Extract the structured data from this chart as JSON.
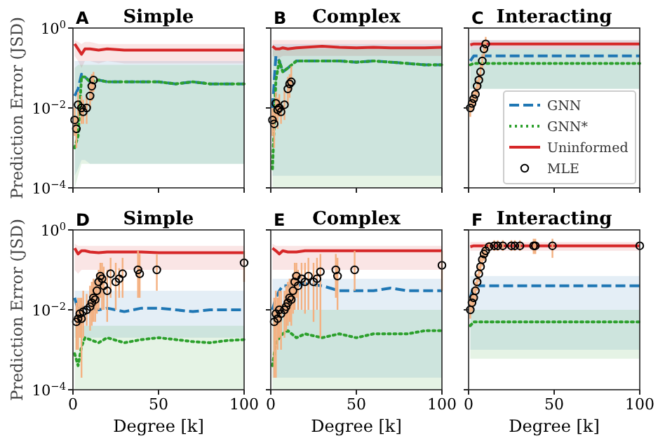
{
  "chart_data": [
    {
      "type": "line",
      "title": "Simple",
      "annotations": [
        "A"
      ],
      "ylabel": "Prediction Error (JSD)",
      "xlim": [
        0,
        100
      ],
      "ylim": [
        0.0001,
        1
      ],
      "xticks": [
        {
          "value": 0,
          "label": null
        },
        {
          "value": 50,
          "label": null
        },
        {
          "value": 100,
          "label": null
        }
      ],
      "yticks": [
        {
          "value": 0.0001,
          "label": "10$^{−4}$"
        },
        {
          "value": 0.01,
          "label": "10$^{−2}$"
        },
        {
          "value": 1,
          "label": "10$^{0}$"
        }
      ],
      "log": "y",
      "tick_labels": "y",
      "series": [
        {
          "type": "line",
          "color": "#d62728",
          "line_style": "solid",
          "x": [
            1,
            3,
            5,
            7,
            10,
            15,
            20,
            30,
            40,
            50,
            60,
            70,
            80,
            90,
            100
          ],
          "values": [
            0.4,
            0.3,
            0.22,
            0.3,
            0.3,
            0.28,
            0.3,
            0.28,
            0.28,
            0.28,
            0.28,
            0.28,
            0.28,
            0.28,
            0.28
          ],
          "lower": [
            0.2,
            0.15,
            0.1,
            0.15,
            0.15,
            0.13,
            0.15,
            0.13,
            0.13,
            0.13,
            0.13,
            0.13,
            0.13,
            0.13,
            0.13
          ],
          "upper": [
            0.5,
            0.45,
            0.4,
            0.45,
            0.45,
            0.4,
            0.4,
            0.4,
            0.4,
            0.4,
            0.4,
            0.4,
            0.4,
            0.4,
            0.4
          ]
        },
        {
          "type": "line",
          "color": "#1f77b4",
          "line_style": "dashed",
          "x": [
            1,
            3,
            5,
            7,
            10,
            15,
            20,
            30,
            40,
            50,
            60,
            70,
            80,
            90,
            100
          ],
          "values": [
            0.02,
            0.03,
            0.07,
            0.06,
            0.045,
            0.05,
            0.045,
            0.045,
            0.045,
            0.045,
            0.04,
            0.045,
            0.04,
            0.04,
            0.04
          ],
          "lower": [
            0.0002,
            0.0003,
            0.0005,
            0.0005,
            0.0004,
            0.0004,
            0.0004,
            0.0004,
            0.0004,
            0.0004,
            0.0004,
            0.0004,
            0.0004,
            0.0004,
            0.0004
          ],
          "upper": [
            0.15,
            0.15,
            0.15,
            0.15,
            0.15,
            0.15,
            0.15,
            0.15,
            0.15,
            0.15,
            0.15,
            0.15,
            0.15,
            0.15,
            0.15
          ]
        },
        {
          "type": "line",
          "color": "#2ca02c",
          "line_style": "dotted",
          "x": [
            1,
            3,
            5,
            7,
            10,
            15,
            20,
            30,
            40,
            50,
            60,
            70,
            80,
            90,
            100
          ],
          "values": [
            0.001,
            0.002,
            0.06,
            0.06,
            0.045,
            0.05,
            0.045,
            0.045,
            0.045,
            0.045,
            0.04,
            0.045,
            0.04,
            0.04,
            0.04
          ],
          "lower": [
            0.0001,
            0.0002,
            0.0004,
            0.0004,
            0.0004,
            0.0004,
            0.0004,
            0.0004,
            0.0004,
            0.0004,
            0.0004,
            0.0004,
            0.0004,
            0.0004,
            0.0004
          ],
          "upper": [
            0.1,
            0.12,
            0.12,
            0.12,
            0.12,
            0.12,
            0.12,
            0.12,
            0.12,
            0.12,
            0.12,
            0.12,
            0.12,
            0.12,
            0.12
          ]
        },
        {
          "type": "scatter",
          "color": "#000000",
          "marker": "circle",
          "x": [
            1,
            2,
            3,
            5,
            6,
            8,
            10,
            11,
            12
          ],
          "values": [
            0.005,
            0.003,
            0.012,
            0.01,
            0.008,
            0.01,
            0.02,
            0.035,
            0.05
          ],
          "errors": [
            [
              0.002,
              0.01
            ],
            [
              0.001,
              0.006
            ],
            [
              0.005,
              0.025
            ],
            [
              0.004,
              0.02
            ],
            [
              0.004,
              0.016
            ],
            [
              0.004,
              0.02
            ],
            [
              0.01,
              0.04
            ],
            [
              0.015,
              0.07
            ],
            [
              0.025,
              0.08
            ]
          ]
        }
      ]
    },
    {
      "type": "line",
      "title": "Complex",
      "annotations": [
        "B"
      ],
      "xlim": [
        0,
        100
      ],
      "ylim": [
        0.0001,
        1
      ],
      "xticks": [
        {
          "value": 0,
          "label": null
        },
        {
          "value": 50,
          "label": null
        },
        {
          "value": 100,
          "label": null
        }
      ],
      "yticks": [
        {
          "value": 0.0001,
          "label": null
        },
        {
          "value": 0.01,
          "label": null
        },
        {
          "value": 1,
          "label": null
        }
      ],
      "log": "y",
      "tick_labels": false,
      "series": [
        {
          "type": "line",
          "color": "#d62728",
          "line_style": "solid",
          "x": [
            1,
            3,
            5,
            7,
            10,
            15,
            20,
            30,
            40,
            50,
            60,
            70,
            80,
            90,
            100
          ],
          "values": [
            0.35,
            0.3,
            0.3,
            0.32,
            0.3,
            0.32,
            0.33,
            0.35,
            0.33,
            0.32,
            0.33,
            0.32,
            0.32,
            0.32,
            0.33
          ],
          "lower": [
            0.2,
            0.18,
            0.18,
            0.2,
            0.2,
            0.2,
            0.2,
            0.2,
            0.2,
            0.2,
            0.2,
            0.2,
            0.2,
            0.2,
            0.2
          ],
          "upper": [
            0.5,
            0.5,
            0.5,
            0.5,
            0.5,
            0.5,
            0.5,
            0.5,
            0.5,
            0.5,
            0.5,
            0.5,
            0.5,
            0.5,
            0.5
          ]
        },
        {
          "type": "line",
          "color": "#1f77b4",
          "line_style": "dashed",
          "x": [
            1,
            3,
            5,
            7,
            10,
            15,
            20,
            30,
            40,
            50,
            60,
            70,
            80,
            90,
            100
          ],
          "values": [
            0.01,
            0.2,
            0.15,
            0.08,
            0.1,
            0.15,
            0.15,
            0.15,
            0.15,
            0.14,
            0.15,
            0.14,
            0.13,
            0.12,
            0.12
          ],
          "lower": [
            0.0002,
            0.0002,
            0.0002,
            0.0002,
            0.0002,
            0.0002,
            0.0002,
            0.0002,
            0.0002,
            0.0002,
            0.0002,
            0.0002,
            0.0002,
            0.0002,
            0.0002
          ],
          "upper": [
            0.4,
            0.4,
            0.4,
            0.4,
            0.4,
            0.4,
            0.4,
            0.4,
            0.4,
            0.4,
            0.4,
            0.4,
            0.4,
            0.4,
            0.4
          ]
        },
        {
          "type": "line",
          "color": "#2ca02c",
          "line_style": "dotted",
          "x": [
            1,
            3,
            5,
            7,
            10,
            15,
            20,
            30,
            40,
            50,
            60,
            70,
            80,
            90,
            100
          ],
          "values": [
            0.0003,
            0.05,
            0.15,
            0.08,
            0.1,
            0.15,
            0.15,
            0.15,
            0.15,
            0.14,
            0.15,
            0.14,
            0.13,
            0.12,
            0.12
          ],
          "lower": [
            0.0001,
            0.0001,
            0.0001,
            0.0001,
            0.0001,
            0.0001,
            0.0001,
            0.0001,
            0.0001,
            0.0001,
            0.0001,
            0.0001,
            0.0001,
            0.0001,
            0.0001
          ],
          "upper": [
            0.3,
            0.3,
            0.3,
            0.3,
            0.3,
            0.3,
            0.3,
            0.3,
            0.3,
            0.3,
            0.3,
            0.3,
            0.3,
            0.3,
            0.3
          ]
        },
        {
          "type": "scatter",
          "color": "#000000",
          "marker": "circle",
          "x": [
            1,
            2,
            3,
            4,
            5,
            6,
            8,
            10,
            11,
            12
          ],
          "values": [
            0.005,
            0.004,
            0.013,
            0.009,
            0.01,
            0.008,
            0.012,
            0.03,
            0.04,
            0.045
          ],
          "errors": [
            [
              0.002,
              0.01
            ],
            [
              0.001,
              0.008
            ],
            [
              0.005,
              0.025
            ],
            [
              0.003,
              0.018
            ],
            [
              0.006,
              0.022
            ],
            [
              0.004,
              0.014
            ],
            [
              0.005,
              0.028
            ],
            [
              0.012,
              0.06
            ],
            [
              0.018,
              0.07
            ],
            [
              0.028,
              0.11
            ]
          ]
        }
      ]
    },
    {
      "type": "line",
      "title": "Interacting",
      "annotations": [
        "C"
      ],
      "legend": "bottom right",
      "xlim": [
        0,
        100
      ],
      "ylim": [
        0.0001,
        1
      ],
      "xticks": [
        {
          "value": 0,
          "label": null
        },
        {
          "value": 50,
          "label": null
        },
        {
          "value": 100,
          "label": null
        }
      ],
      "yticks": [
        {
          "value": 0.0001,
          "label": null
        },
        {
          "value": 0.01,
          "label": null
        },
        {
          "value": 1,
          "label": null
        }
      ],
      "log": "y",
      "tick_labels": false,
      "series": [
        {
          "type": "line",
          "name": "GNN",
          "color": "#1f77b4",
          "line_style": "dashed",
          "x": [
            1,
            3,
            5,
            7,
            10,
            15,
            20,
            30,
            40,
            50,
            60,
            70,
            80,
            90,
            100
          ],
          "values": [
            0.15,
            0.2,
            0.2,
            0.2,
            0.2,
            0.2,
            0.2,
            0.2,
            0.2,
            0.2,
            0.2,
            0.2,
            0.2,
            0.2,
            0.2
          ],
          "lower": [
            0.03,
            0.03,
            0.03,
            0.03,
            0.03,
            0.03,
            0.03,
            0.03,
            0.03,
            0.03,
            0.03,
            0.03,
            0.03,
            0.03,
            0.03
          ],
          "upper": [
            0.5,
            0.5,
            0.5,
            0.5,
            0.5,
            0.5,
            0.5,
            0.5,
            0.5,
            0.5,
            0.5,
            0.5,
            0.5,
            0.5,
            0.5
          ]
        },
        {
          "type": "line",
          "name": "GNN*",
          "color": "#2ca02c",
          "line_style": "dotted",
          "x": [
            1,
            3,
            5,
            7,
            10,
            15,
            20,
            30,
            40,
            50,
            60,
            70,
            80,
            90,
            100
          ],
          "values": [
            0.12,
            0.13,
            0.13,
            0.13,
            0.13,
            0.13,
            0.13,
            0.13,
            0.13,
            0.13,
            0.13,
            0.13,
            0.13,
            0.13,
            0.13
          ],
          "lower": [
            0.03,
            0.03,
            0.03,
            0.03,
            0.03,
            0.03,
            0.03,
            0.03,
            0.03,
            0.03,
            0.03,
            0.03,
            0.03,
            0.03,
            0.03
          ],
          "upper": [
            0.3,
            0.3,
            0.3,
            0.3,
            0.3,
            0.3,
            0.3,
            0.3,
            0.3,
            0.3,
            0.3,
            0.3,
            0.3,
            0.3,
            0.3
          ]
        },
        {
          "type": "line",
          "name": "Uninformed",
          "color": "#d62728",
          "line_style": "solid",
          "x": [
            1,
            3,
            5,
            7,
            10,
            15,
            20,
            30,
            40,
            50,
            60,
            70,
            80,
            90,
            100
          ],
          "values": [
            0.38,
            0.4,
            0.4,
            0.4,
            0.4,
            0.4,
            0.4,
            0.4,
            0.4,
            0.4,
            0.4,
            0.4,
            0.4,
            0.4,
            0.4
          ],
          "lower": [
            0.3,
            0.3,
            0.3,
            0.3,
            0.3,
            0.3,
            0.3,
            0.3,
            0.3,
            0.3,
            0.3,
            0.3,
            0.3,
            0.3,
            0.3
          ],
          "upper": [
            0.5,
            0.5,
            0.5,
            0.5,
            0.5,
            0.5,
            0.5,
            0.5,
            0.5,
            0.5,
            0.5,
            0.5,
            0.5,
            0.5,
            0.5
          ]
        },
        {
          "type": "scatter",
          "name": "MLE",
          "color": "#000000",
          "marker": "circle",
          "x": [
            1,
            2,
            3,
            4,
            5,
            6,
            7,
            8,
            9,
            10
          ],
          "values": [
            0.01,
            0.013,
            0.017,
            0.022,
            0.035,
            0.05,
            0.08,
            0.15,
            0.3,
            0.4
          ],
          "errors": [
            [
              0.006,
              0.015
            ],
            [
              0.008,
              0.02
            ],
            [
              0.01,
              0.026
            ],
            [
              0.013,
              0.033
            ],
            [
              0.021,
              0.05
            ],
            [
              0.03,
              0.075
            ],
            [
              0.05,
              0.12
            ],
            [
              0.09,
              0.22
            ],
            [
              0.18,
              0.45
            ],
            [
              0.24,
              0.6
            ]
          ]
        }
      ]
    },
    {
      "type": "line",
      "title": "Simple",
      "annotations": [
        "D"
      ],
      "ylabel": "Prediction Error (JSD)",
      "xlabel": "Degree [k]",
      "xlim": [
        0,
        100
      ],
      "ylim": [
        0.0001,
        1
      ],
      "xticks": [
        0,
        50,
        100
      ],
      "yticks": [
        {
          "value": 0.0001,
          "label": "10$^{−4}$"
        },
        {
          "value": 0.01,
          "label": "10$^{−2}$"
        },
        {
          "value": 1,
          "label": "10$^{0}$"
        }
      ],
      "log": "y",
      "series": [
        {
          "type": "line",
          "color": "#d62728",
          "line_style": "solid",
          "x": [
            1,
            3,
            5,
            7,
            10,
            15,
            20,
            30,
            40,
            50,
            60,
            70,
            80,
            90,
            100
          ],
          "values": [
            0.35,
            0.25,
            0.3,
            0.3,
            0.28,
            0.27,
            0.28,
            0.28,
            0.28,
            0.27,
            0.27,
            0.27,
            0.27,
            0.27,
            0.27
          ],
          "lower": [
            0.1,
            0.08,
            0.1,
            0.1,
            0.1,
            0.1,
            0.1,
            0.1,
            0.1,
            0.1,
            0.1,
            0.1,
            0.1,
            0.1,
            0.1
          ],
          "upper": [
            0.45,
            0.4,
            0.4,
            0.4,
            0.4,
            0.4,
            0.4,
            0.4,
            0.4,
            0.4,
            0.4,
            0.4,
            0.4,
            0.4,
            0.4
          ]
        },
        {
          "type": "line",
          "color": "#1f77b4",
          "line_style": "dashed",
          "x": [
            1,
            3,
            5,
            7,
            10,
            15,
            20,
            30,
            40,
            50,
            60,
            70,
            80,
            90,
            100
          ],
          "values": [
            0.02,
            0.01,
            0.012,
            0.011,
            0.011,
            0.01,
            0.011,
            0.009,
            0.011,
            0.011,
            0.01,
            0.009,
            0.01,
            0.01,
            0.01
          ],
          "lower": [
            0.002,
            0.002,
            0.002,
            0.002,
            0.002,
            0.002,
            0.002,
            0.002,
            0.002,
            0.002,
            0.002,
            0.002,
            0.002,
            0.002,
            0.002
          ],
          "upper": [
            0.03,
            0.03,
            0.03,
            0.03,
            0.03,
            0.03,
            0.03,
            0.03,
            0.03,
            0.03,
            0.03,
            0.03,
            0.03,
            0.03,
            0.03
          ]
        },
        {
          "type": "line",
          "color": "#2ca02c",
          "line_style": "dotted",
          "x": [
            1,
            3,
            5,
            7,
            10,
            15,
            20,
            30,
            40,
            50,
            60,
            70,
            80,
            90,
            100
          ],
          "values": [
            0.0008,
            0.0004,
            0.0012,
            0.002,
            0.0018,
            0.0015,
            0.002,
            0.0015,
            0.0018,
            0.002,
            0.0018,
            0.0016,
            0.0015,
            0.0017,
            0.0018
          ],
          "lower": [
            0.0001,
            0.0001,
            0.0001,
            0.0001,
            0.0001,
            0.0001,
            0.0001,
            0.0001,
            0.0001,
            0.0001,
            0.0001,
            0.0001,
            0.0001,
            0.0001,
            0.0001
          ],
          "upper": [
            0.004,
            0.004,
            0.004,
            0.004,
            0.004,
            0.004,
            0.004,
            0.004,
            0.004,
            0.004,
            0.004,
            0.004,
            0.004,
            0.004,
            0.004
          ]
        },
        {
          "type": "scatter",
          "color": "#000000",
          "marker": "circle",
          "x": [
            2,
            3,
            4,
            5,
            6,
            8,
            10,
            11,
            12,
            13,
            14,
            15,
            16,
            17,
            18,
            20,
            22,
            25,
            27,
            29,
            38,
            39,
            49,
            100
          ],
          "values": [
            0.005,
            0.006,
            0.008,
            0.006,
            0.009,
            0.01,
            0.012,
            0.015,
            0.02,
            0.018,
            0.03,
            0.05,
            0.07,
            0.06,
            0.04,
            0.03,
            0.08,
            0.05,
            0.06,
            0.08,
            0.1,
            0.08,
            0.1,
            0.15
          ],
          "errors": [
            [
              0.001,
              0.015
            ],
            [
              0.001,
              0.02
            ],
            [
              0.002,
              0.02
            ],
            [
              0.0002,
              0.02
            ],
            [
              0.002,
              0.03
            ],
            [
              0.004,
              0.025
            ],
            [
              0.003,
              0.04
            ],
            [
              0.004,
              0.05
            ],
            [
              0.005,
              0.06
            ],
            [
              0.005,
              0.05
            ],
            [
              0.008,
              0.08
            ],
            [
              0.01,
              0.1
            ],
            [
              0.02,
              0.15
            ],
            [
              0.01,
              0.15
            ],
            [
              0.01,
              0.12
            ],
            [
              0.005,
              0.1
            ],
            [
              0.02,
              0.2
            ],
            [
              0.01,
              0.15
            ],
            [
              0.02,
              0.11
            ],
            [
              0.02,
              0.2
            ],
            [
              0.02,
              0.3
            ],
            [
              0.02,
              0.25
            ],
            [
              0.03,
              0.25
            ],
            [
              0.05,
              0.3
            ]
          ]
        }
      ]
    },
    {
      "type": "line",
      "title": "Complex",
      "annotations": [
        "E"
      ],
      "xlabel": "Degree [k]",
      "xlim": [
        0,
        100
      ],
      "ylim": [
        0.0001,
        1
      ],
      "xticks": [
        0,
        50,
        100
      ],
      "yticks": [
        {
          "value": 0.0001,
          "label": null
        },
        {
          "value": 0.01,
          "label": null
        },
        {
          "value": 1,
          "label": null
        }
      ],
      "log": "y",
      "tick_labels": "x",
      "series": [
        {
          "type": "line",
          "color": "#d62728",
          "line_style": "solid",
          "x": [
            1,
            3,
            5,
            7,
            10,
            15,
            20,
            30,
            40,
            50,
            60,
            70,
            80,
            90,
            100
          ],
          "values": [
            0.35,
            0.3,
            0.25,
            0.3,
            0.28,
            0.28,
            0.3,
            0.3,
            0.3,
            0.3,
            0.3,
            0.3,
            0.3,
            0.3,
            0.3
          ],
          "lower": [
            0.1,
            0.1,
            0.1,
            0.1,
            0.1,
            0.1,
            0.1,
            0.1,
            0.1,
            0.1,
            0.1,
            0.1,
            0.1,
            0.1,
            0.1
          ],
          "upper": [
            0.45,
            0.4,
            0.4,
            0.4,
            0.4,
            0.4,
            0.4,
            0.4,
            0.4,
            0.4,
            0.4,
            0.4,
            0.4,
            0.4,
            0.4
          ]
        },
        {
          "type": "line",
          "color": "#1f77b4",
          "line_style": "dashed",
          "x": [
            1,
            3,
            5,
            7,
            10,
            15,
            20,
            30,
            40,
            50,
            60,
            70,
            80,
            90,
            100
          ],
          "values": [
            0.01,
            0.02,
            0.03,
            0.04,
            0.04,
            0.04,
            0.045,
            0.04,
            0.03,
            0.03,
            0.03,
            0.035,
            0.03,
            0.03,
            0.03
          ],
          "lower": [
            0.0002,
            0.0002,
            0.0002,
            0.0002,
            0.0002,
            0.0002,
            0.0002,
            0.0002,
            0.0002,
            0.0002,
            0.0002,
            0.0002,
            0.0002,
            0.0002,
            0.0002
          ],
          "upper": [
            0.06,
            0.06,
            0.06,
            0.06,
            0.06,
            0.06,
            0.06,
            0.06,
            0.06,
            0.06,
            0.06,
            0.06,
            0.06,
            0.06,
            0.06
          ]
        },
        {
          "type": "line",
          "color": "#2ca02c",
          "line_style": "dotted",
          "x": [
            1,
            3,
            5,
            7,
            10,
            15,
            20,
            30,
            40,
            50,
            60,
            70,
            80,
            90,
            100
          ],
          "values": [
            0.0004,
            0.0015,
            0.002,
            0.0025,
            0.003,
            0.002,
            0.0025,
            0.002,
            0.0025,
            0.002,
            0.0025,
            0.0025,
            0.0025,
            0.003,
            0.003
          ],
          "lower": [
            0.0001,
            0.0001,
            0.0001,
            0.0001,
            0.0001,
            0.0001,
            0.0001,
            0.0001,
            0.0001,
            0.0001,
            0.0001,
            0.0001,
            0.0001,
            0.0001,
            0.0001
          ],
          "upper": [
            0.01,
            0.01,
            0.01,
            0.01,
            0.01,
            0.01,
            0.01,
            0.01,
            0.01,
            0.01,
            0.01,
            0.01,
            0.01,
            0.01,
            0.01
          ]
        },
        {
          "type": "scatter",
          "color": "#000000",
          "marker": "circle",
          "x": [
            2,
            3,
            4,
            5,
            6,
            8,
            9,
            10,
            11,
            12,
            13,
            14,
            15,
            16,
            18,
            20,
            22,
            25,
            27,
            29,
            38,
            39,
            49,
            100
          ],
          "values": [
            0.005,
            0.008,
            0.006,
            0.01,
            0.008,
            0.01,
            0.012,
            0.015,
            0.02,
            0.018,
            0.03,
            0.05,
            0.07,
            0.04,
            0.06,
            0.05,
            0.07,
            0.05,
            0.06,
            0.09,
            0.1,
            0.07,
            0.1,
            0.13
          ],
          "errors": [
            [
              0.0002,
              0.02
            ],
            [
              0.0002,
              0.03
            ],
            [
              0.001,
              0.02
            ],
            [
              0.002,
              0.03
            ],
            [
              0.001,
              0.03
            ],
            [
              0.002,
              0.03
            ],
            [
              0.003,
              0.04
            ],
            [
              0.004,
              0.05
            ],
            [
              0.005,
              0.06
            ],
            [
              0.004,
              0.06
            ],
            [
              0.008,
              0.08
            ],
            [
              0.01,
              0.15
            ],
            [
              0.02,
              0.15
            ],
            [
              0.01,
              0.1
            ],
            [
              0.01,
              0.15
            ],
            [
              0.008,
              0.15
            ],
            [
              0.01,
              0.2
            ],
            [
              0.005,
              0.15
            ],
            [
              0.01,
              0.2
            ],
            [
              0.002,
              0.25
            ],
            [
              0.02,
              0.25
            ],
            [
              0.01,
              0.2
            ],
            [
              0.03,
              0.3
            ],
            [
              0.03,
              0.3
            ]
          ]
        }
      ]
    },
    {
      "type": "line",
      "title": "Interacting",
      "annotations": [
        "F"
      ],
      "xlabel": "Degree [k]",
      "xlim": [
        0,
        100
      ],
      "ylim": [
        0.0001,
        1
      ],
      "xticks": [
        0,
        50,
        100
      ],
      "yticks": [
        {
          "value": 0.0001,
          "label": null
        },
        {
          "value": 0.01,
          "label": null
        },
        {
          "value": 1,
          "label": null
        }
      ],
      "log": "y",
      "tick_labels": "x",
      "series": [
        {
          "type": "line",
          "color": "#d62728",
          "line_style": "solid",
          "x": [
            1,
            3,
            5,
            7,
            10,
            15,
            20,
            30,
            40,
            50,
            60,
            70,
            80,
            90,
            100
          ],
          "values": [
            0.38,
            0.4,
            0.4,
            0.4,
            0.4,
            0.4,
            0.4,
            0.4,
            0.4,
            0.4,
            0.4,
            0.4,
            0.4,
            0.4,
            0.4
          ],
          "lower": [
            0.3,
            0.3,
            0.3,
            0.3,
            0.3,
            0.3,
            0.3,
            0.3,
            0.3,
            0.3,
            0.3,
            0.3,
            0.3,
            0.3,
            0.3
          ],
          "upper": [
            0.5,
            0.5,
            0.5,
            0.5,
            0.5,
            0.5,
            0.5,
            0.5,
            0.5,
            0.5,
            0.5,
            0.5,
            0.5,
            0.5,
            0.5
          ]
        },
        {
          "type": "line",
          "color": "#1f77b4",
          "line_style": "dashed",
          "x": [
            1,
            3,
            5,
            7,
            10,
            15,
            20,
            30,
            40,
            50,
            60,
            70,
            80,
            90,
            100
          ],
          "values": [
            0.02,
            0.04,
            0.04,
            0.04,
            0.04,
            0.04,
            0.04,
            0.04,
            0.04,
            0.04,
            0.04,
            0.04,
            0.04,
            0.04,
            0.04
          ],
          "lower": [
            0.001,
            0.001,
            0.001,
            0.001,
            0.001,
            0.001,
            0.001,
            0.001,
            0.001,
            0.001,
            0.001,
            0.001,
            0.001,
            0.001,
            0.001
          ],
          "upper": [
            0.07,
            0.07,
            0.07,
            0.07,
            0.07,
            0.07,
            0.07,
            0.07,
            0.07,
            0.07,
            0.07,
            0.07,
            0.07,
            0.07,
            0.07
          ]
        },
        {
          "type": "line",
          "color": "#2ca02c",
          "line_style": "dotted",
          "x": [
            1,
            3,
            5,
            7,
            10,
            15,
            20,
            30,
            40,
            50,
            60,
            70,
            80,
            90,
            100
          ],
          "values": [
            0.004,
            0.005,
            0.005,
            0.005,
            0.005,
            0.005,
            0.005,
            0.005,
            0.005,
            0.005,
            0.005,
            0.005,
            0.005,
            0.005,
            0.005
          ],
          "lower": [
            0.0006,
            0.0006,
            0.0006,
            0.0006,
            0.0006,
            0.0006,
            0.0006,
            0.0006,
            0.0006,
            0.0006,
            0.0006,
            0.0006,
            0.0006,
            0.0006,
            0.0006
          ],
          "upper": [
            0.01,
            0.01,
            0.01,
            0.01,
            0.01,
            0.01,
            0.01,
            0.01,
            0.01,
            0.01,
            0.01,
            0.01,
            0.01,
            0.01,
            0.01
          ]
        },
        {
          "type": "scatter",
          "color": "#000000",
          "marker": "circle",
          "x": [
            1,
            2,
            3,
            4,
            5,
            6,
            7,
            8,
            9,
            10,
            12,
            15,
            17,
            20,
            25,
            27,
            30,
            38,
            39,
            49,
            100
          ],
          "values": [
            0.01,
            0.015,
            0.02,
            0.03,
            0.05,
            0.08,
            0.12,
            0.18,
            0.25,
            0.3,
            0.38,
            0.4,
            0.4,
            0.4,
            0.4,
            0.4,
            0.4,
            0.4,
            0.4,
            0.4,
            0.4
          ],
          "errors": [
            [
              0.006,
              0.02
            ],
            [
              0.009,
              0.025
            ],
            [
              0.012,
              0.035
            ],
            [
              0.018,
              0.05
            ],
            [
              0.03,
              0.08
            ],
            [
              0.05,
              0.13
            ],
            [
              0.08,
              0.2
            ],
            [
              0.12,
              0.28
            ],
            [
              0.17,
              0.4
            ],
            [
              0.2,
              0.45
            ],
            [
              0.28,
              0.5
            ],
            [
              0.3,
              0.55
            ],
            [
              0.3,
              0.55
            ],
            [
              0.3,
              0.55
            ],
            [
              0.3,
              0.55
            ],
            [
              0.3,
              0.55
            ],
            [
              0.3,
              0.55
            ],
            [
              0.25,
              0.6
            ],
            [
              0.25,
              0.6
            ],
            [
              0.2,
              0.6
            ],
            null
          ]
        }
      ]
    }
  ]
}
